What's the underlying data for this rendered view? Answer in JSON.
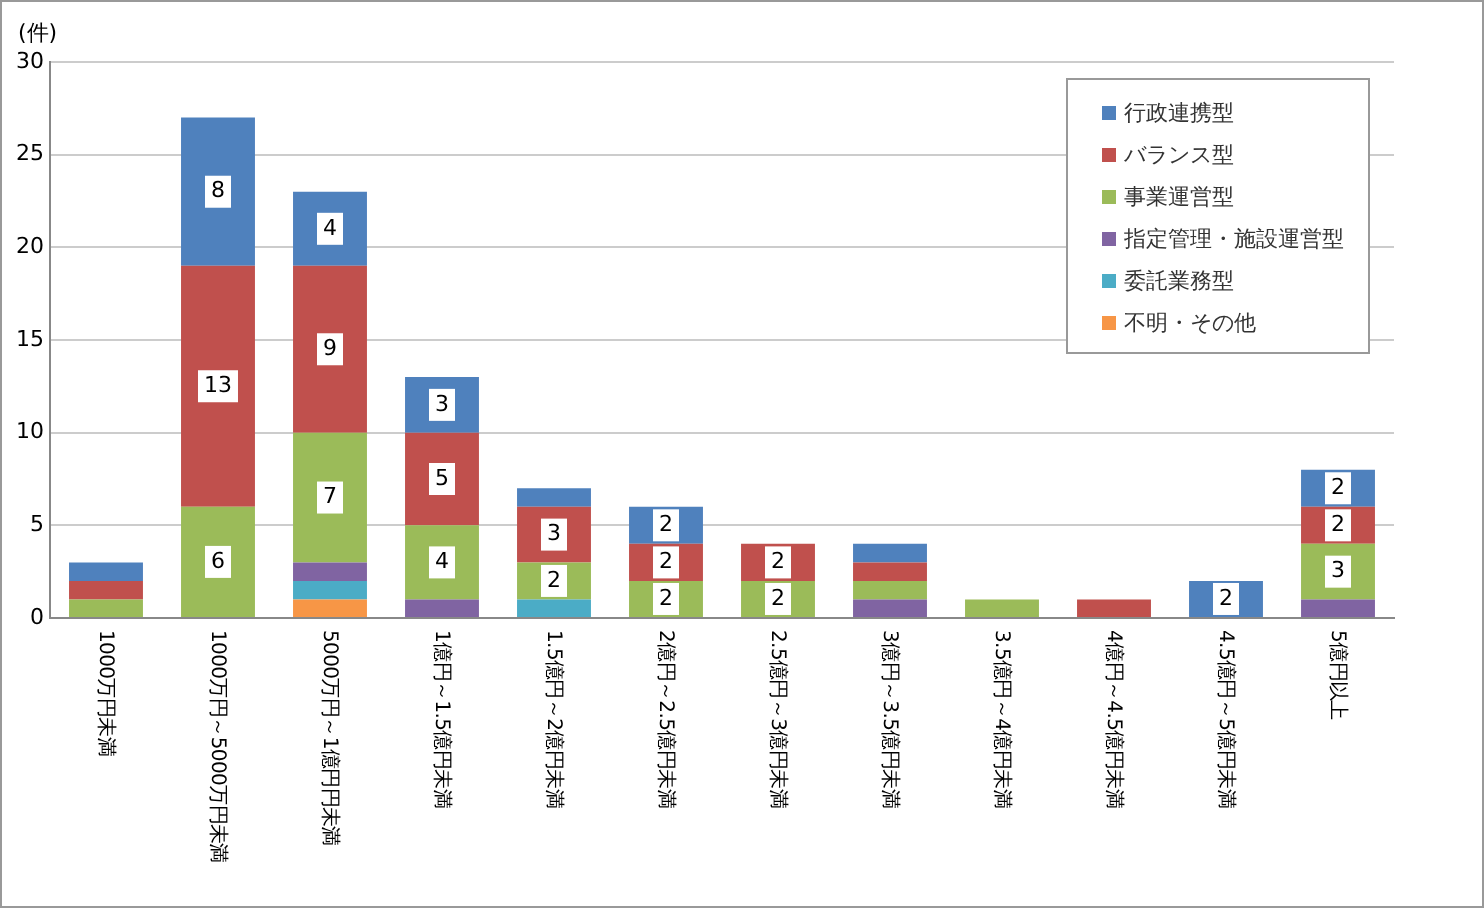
{
  "chart_data": {
    "type": "bar",
    "stacked": true,
    "ylabel": "(件)",
    "categories": [
      "1000万円未満",
      "1000万円～5000万円未満",
      "5000万円～1億円円未満",
      "1億円～1.5億円未満",
      "1.5億円～2億円未満",
      "2億円～2.5億円未満",
      "2.5億円～3億円未満",
      "3億円～3.5億円未満",
      "3.5億円～4億円未満",
      "4億円～4.5億円未満",
      "4.5億円～5億円未満",
      "5億円以上"
    ],
    "series": [
      {
        "name": "不明・その他",
        "color": "#f79646",
        "values": [
          0,
          0,
          1,
          0,
          0,
          0,
          0,
          0,
          0,
          0,
          0,
          0
        ],
        "value_labels": [
          null,
          null,
          null,
          null,
          null,
          null,
          null,
          null,
          null,
          null,
          null,
          null
        ]
      },
      {
        "name": "委託業務型",
        "color": "#4bacc6",
        "values": [
          0,
          0,
          1,
          0,
          1,
          0,
          0,
          0,
          0,
          0,
          0,
          0
        ],
        "value_labels": [
          null,
          null,
          null,
          null,
          null,
          null,
          null,
          null,
          null,
          null,
          null,
          null
        ]
      },
      {
        "name": "指定管理・施設運営型",
        "color": "#8064a2",
        "values": [
          0,
          0,
          1,
          1,
          0,
          0,
          0,
          1,
          0,
          0,
          0,
          1
        ],
        "value_labels": [
          null,
          null,
          null,
          null,
          null,
          null,
          null,
          null,
          null,
          null,
          null,
          null
        ]
      },
      {
        "name": "事業運営型",
        "color": "#9bbb59",
        "values": [
          1,
          6,
          7,
          4,
          2,
          2,
          2,
          1,
          1,
          0,
          0,
          3
        ],
        "value_labels": [
          null,
          "6",
          "7",
          "4",
          "2",
          "2",
          "2",
          null,
          null,
          null,
          null,
          "3"
        ]
      },
      {
        "name": "バランス型",
        "color": "#c0504d",
        "values": [
          1,
          13,
          9,
          5,
          3,
          2,
          2,
          1,
          0,
          1,
          0,
          2
        ],
        "value_labels": [
          null,
          "13",
          "9",
          "5",
          "3",
          "2",
          "2",
          null,
          null,
          null,
          null,
          "2"
        ]
      },
      {
        "name": "行政連携型",
        "color": "#4f81bd",
        "values": [
          1,
          8,
          4,
          3,
          1,
          2,
          0,
          1,
          0,
          0,
          2,
          2
        ],
        "value_labels": [
          null,
          "8",
          "4",
          "3",
          null,
          "2",
          null,
          null,
          null,
          null,
          "2",
          "2"
        ]
      }
    ],
    "ylim": [
      0,
      30
    ],
    "yticks": [
      0,
      5,
      10,
      15,
      20,
      25,
      30
    ],
    "grid": "y",
    "legend": "top right"
  }
}
